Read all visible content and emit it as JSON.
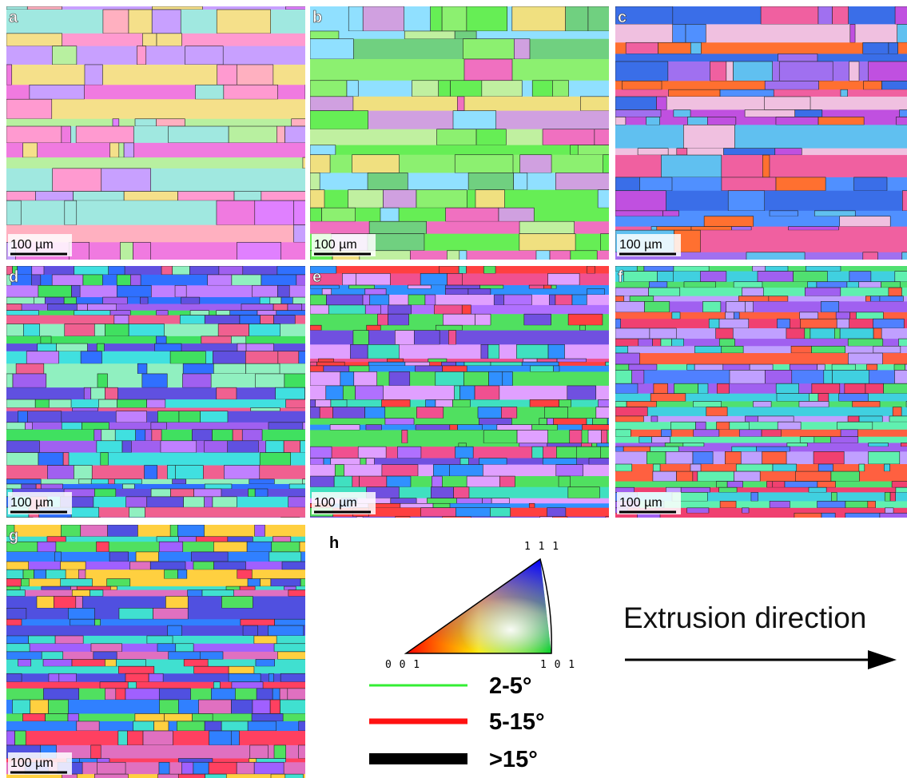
{
  "panels": [
    {
      "label": "a",
      "scale_bar": "100 µm"
    },
    {
      "label": "b",
      "scale_bar": "100 µm"
    },
    {
      "label": "c",
      "scale_bar": "100 µm"
    },
    {
      "label": "d",
      "scale_bar": "100 µm"
    },
    {
      "label": "e",
      "scale_bar": "100 µm"
    },
    {
      "label": "f",
      "scale_bar": "100 µm"
    },
    {
      "label": "g",
      "scale_bar": "100 µm"
    }
  ],
  "legend": {
    "label": "h",
    "ipf_corners": [
      "1 1 1",
      "0 0 1",
      "1 0 1"
    ],
    "boundaries": [
      {
        "range": "2-5°",
        "color": "#33ee33"
      },
      {
        "range": "5-15°",
        "color": "#ff1111"
      },
      {
        "range": ">15°",
        "color": "#000000"
      }
    ]
  },
  "annotation": "Extrusion direction"
}
